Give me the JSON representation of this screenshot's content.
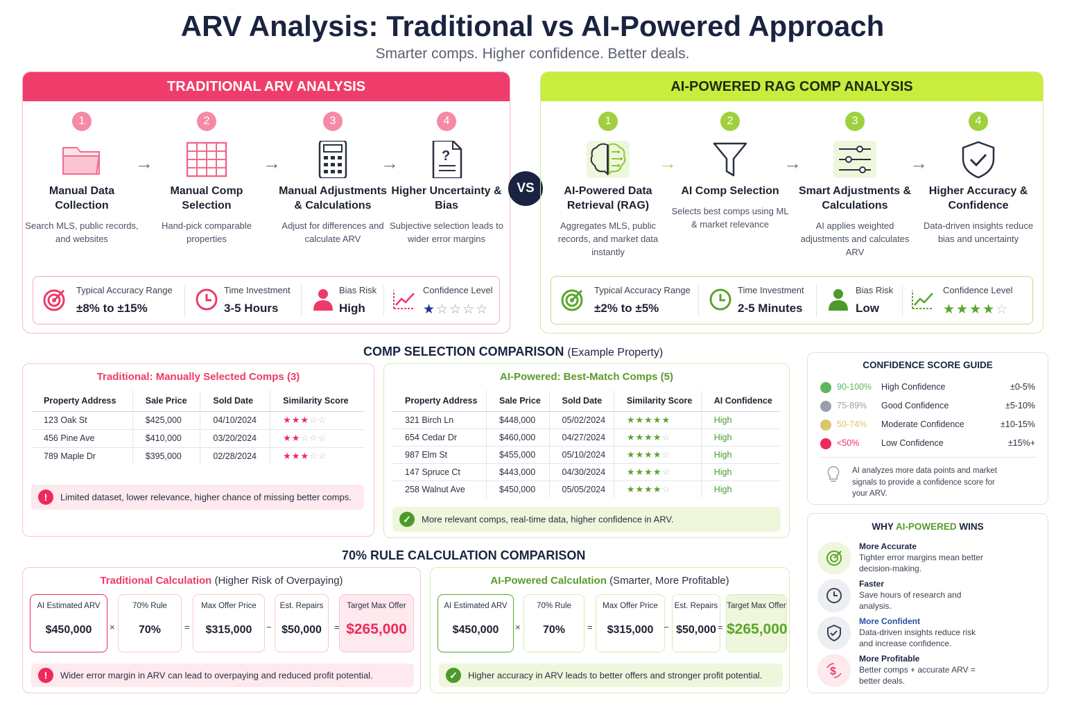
{
  "header": {
    "title": "ARV Analysis: Traditional vs AI-Powered Approach",
    "subtitle": "Smarter comps. Higher confidence. Better deals."
  },
  "vs_label": "VS",
  "traditional": {
    "heading": "TRADITIONAL ARV ANALYSIS",
    "steps": [
      {
        "num": "1",
        "title": "Manual Data Collection",
        "desc": "Search MLS, public records, and websites",
        "icon": "folder-icon"
      },
      {
        "num": "2",
        "title": "Manual Comp Selection",
        "desc": "Hand-pick comparable properties",
        "icon": "spreadsheet-icon"
      },
      {
        "num": "3",
        "title": "Manual Adjustments & Calculations",
        "desc": "Adjust for differences and calculate ARV",
        "icon": "calculator-icon"
      },
      {
        "num": "4",
        "title": "Higher Uncertainty & Bias",
        "desc": "Subjective selection leads to wider error margins",
        "icon": "question-document-icon"
      }
    ],
    "metrics": {
      "accuracy_label": "Typical Accuracy Range",
      "accuracy_value": "±8% to  ±15%",
      "time_label": "Time Investment",
      "time_value": "3-5 Hours",
      "bias_label": "Bias Risk",
      "bias_value": "High",
      "confidence_label": "Confidence Level",
      "confidence_stars": 1
    }
  },
  "ai": {
    "heading": "AI-POWERED RAG COMP ANALYSIS",
    "steps": [
      {
        "num": "1",
        "title": "AI-Powered Data Retrieval (RAG)",
        "desc": "Aggregates MLS, public records, and market data instantly",
        "icon": "brain-circuit-icon"
      },
      {
        "num": "2",
        "title": "AI Comp Selection",
        "desc": "Selects best comps using ML & market relevance",
        "icon": "funnel-icon"
      },
      {
        "num": "3",
        "title": "Smart Adjustments & Calculations",
        "desc": "AI applies weighted adjustments and calculates ARV",
        "icon": "sliders-icon"
      },
      {
        "num": "4",
        "title": "Higher Accuracy & Confidence",
        "desc": "Data-driven insights reduce bias and uncertainty",
        "icon": "shield-check-icon"
      }
    ],
    "metrics": {
      "accuracy_label": "Typical Accuracy Range",
      "accuracy_value": "±2% to  ±5%",
      "time_label": "Time Investment",
      "time_value": "2-5 Minutes",
      "bias_label": "Bias Risk",
      "bias_value": "Low",
      "confidence_label": "Confidence Level",
      "confidence_stars": 4
    }
  },
  "comp_section": {
    "title": "COMP SELECTION COMPARISON",
    "title_suffix": "(Example Property)",
    "traditional": {
      "title": "Traditional: Manually Selected Comps (3)",
      "columns": [
        "Property Address",
        "Sale Price",
        "Sold Date",
        "Similarity Score"
      ],
      "rows": [
        {
          "address": "123 Oak St",
          "price": "$425,000",
          "date": "04/10/2024",
          "stars": 3
        },
        {
          "address": "456 Pine Ave",
          "price": "$410,000",
          "date": "03/20/2024",
          "stars": 2
        },
        {
          "address": "789 Maple Dr",
          "price": "$395,000",
          "date": "02/28/2024",
          "stars": 3
        }
      ],
      "note": "Limited dataset, lower relevance, higher chance of missing better comps."
    },
    "ai": {
      "title": "AI-Powered: Best-Match Comps (5)",
      "columns": [
        "Property Address",
        "Sale Price",
        "Sold Date",
        "Similarity Score",
        "AI Confidence"
      ],
      "rows": [
        {
          "address": "321 Birch Ln",
          "price": "$448,000",
          "date": "05/02/2024",
          "stars": 4.5,
          "confidence": "High"
        },
        {
          "address": "654 Cedar Dr",
          "price": "$460,000",
          "date": "04/27/2024",
          "stars": 4,
          "confidence": "High"
        },
        {
          "address": "987 Elm St",
          "price": "$455,000",
          "date": "05/10/2024",
          "stars": 4,
          "confidence": "High"
        },
        {
          "address": "147 Spruce Ct",
          "price": "$443,000",
          "date": "04/30/2024",
          "stars": 4,
          "confidence": "High"
        },
        {
          "address": "258 Walnut Ave",
          "price": "$450,000",
          "date": "05/05/2024",
          "stars": 4,
          "confidence": "High"
        }
      ],
      "note": "More relevant comps, real-time data, higher confidence in ARV."
    }
  },
  "rule_section": {
    "title": "70% RULE CALCULATION COMPARISON",
    "traditional": {
      "title_main": "Traditional Calculation",
      "title_suffix": "(Higher Risk of Overpaying)",
      "boxes": [
        {
          "label": "AI Estimated ARV",
          "value": "$450,000"
        },
        {
          "label": "70% Rule",
          "value": "70%"
        },
        {
          "label": "Max Offer Price",
          "value": "$315,000"
        },
        {
          "label": "Est. Repairs",
          "value": "$50,000"
        },
        {
          "label": "Target Max Offer",
          "value": "$265,000"
        }
      ],
      "operators": [
        "×",
        "=",
        "−",
        "="
      ],
      "note": "Wider error margin in ARV can lead to overpaying and reduced profit potential."
    },
    "ai": {
      "title_main": "AI-Powered Calculation",
      "title_suffix": "(Smarter, More Profitable)",
      "boxes": [
        {
          "label": "AI Estimated ARV",
          "value": "$450,000"
        },
        {
          "label": "70% Rule",
          "value": "70%"
        },
        {
          "label": "Max Offer Price",
          "value": "$315,000"
        },
        {
          "label": "Est. Repairs",
          "value": "$50,000"
        },
        {
          "label": "Target Max Offer",
          "value": "$265,000"
        }
      ],
      "operators": [
        "×",
        "=",
        "−",
        "="
      ],
      "note": "Higher accuracy in ARV leads to better offers and stronger profit potential."
    }
  },
  "confidence_guide": {
    "title": "CONFIDENCE SCORE GUIDE",
    "rows": [
      {
        "range": "90-100%",
        "label": "High Confidence",
        "margin": "±0-5%",
        "color": "#5cb85c"
      },
      {
        "range": "75-89%",
        "label": "Good Confidence",
        "margin": "±5-10%",
        "color": "#9aa0ab"
      },
      {
        "range": "50-74%",
        "label": "Moderate Confidence",
        "margin": "±10-15%",
        "color": "#d9c76a"
      },
      {
        "range": "<50%",
        "label": "Low Confidence",
        "margin": "±15%+",
        "color": "#ee2a5c"
      }
    ],
    "note": "AI analyzes more data points and market signals to provide a confidence score for your ARV."
  },
  "why": {
    "title_a": "WHY ",
    "title_b": "AI-POWERED",
    "title_c": " WINS",
    "items": [
      {
        "title": "More Accurate",
        "desc": "Tighter error margins mean better decision-making.",
        "icon": "target-icon"
      },
      {
        "title": "Faster",
        "desc": "Save hours of research and analysis.",
        "icon": "clock-icon"
      },
      {
        "title": "More Confident",
        "desc": "Data-driven insights reduce risk and increase confidence.",
        "icon": "shield-check-icon"
      },
      {
        "title": "More Profitable",
        "desc": "Better comps + accurate ARV = better deals.",
        "icon": "dollar-arrows-icon"
      }
    ]
  },
  "colors": {
    "pink": "#ef3d6b",
    "lime": "#c9ec3d",
    "green_text": "#4c9a2a",
    "navy": "#1a2440"
  }
}
